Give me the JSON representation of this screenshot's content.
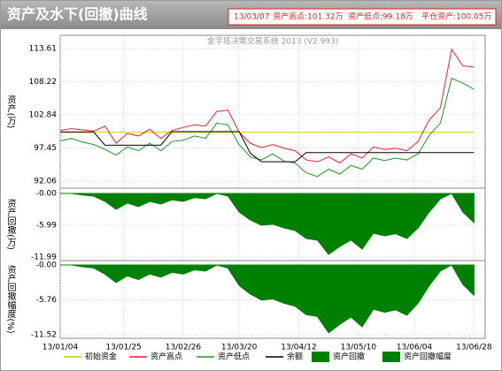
{
  "header": {
    "title": "资产及水下(回撤)曲线",
    "info": [
      "13/03/07",
      "资产高点:101.32万",
      "资产低点:99.18万",
      "平仓资产:100.05万"
    ]
  },
  "chart_data": [
    {
      "type": "line",
      "subtitle": "金字塔决策交易系统 2013 (V2.993)",
      "ylabel": "资产(万)",
      "x": [
        0,
        3,
        6,
        9,
        12,
        15,
        18,
        21,
        24,
        27,
        30,
        33,
        36,
        39,
        42,
        45,
        48,
        51,
        54,
        57,
        60,
        63,
        66,
        69,
        72,
        75,
        78,
        81,
        84,
        87,
        90,
        93,
        96,
        99,
        102,
        105,
        108,
        111
      ],
      "xlim": [
        0,
        114
      ],
      "ylim": [
        90.91,
        115.77
      ],
      "yticks": [
        113.61,
        108.22,
        102.84,
        97.45,
        92.06
      ],
      "grid": true,
      "series": [
        {
          "name": "初始资金",
          "color": "#d8c800",
          "values": [
            100,
            100,
            100,
            100,
            100,
            100,
            100,
            100,
            100,
            100,
            100,
            100,
            100,
            100,
            100,
            100,
            100,
            100,
            100,
            100,
            100,
            100,
            100,
            100,
            100,
            100,
            100,
            100,
            100,
            100,
            100,
            100,
            100,
            100,
            100,
            100,
            100,
            100
          ]
        },
        {
          "name": "资产高点",
          "color": "#e8202a",
          "values": [
            100.3,
            100.6,
            100.4,
            100.2,
            101.0,
            98.2,
            99.8,
            99.4,
            100.5,
            99.0,
            100.3,
            100.8,
            101.2,
            101.0,
            103.4,
            103.6,
            100.0,
            98.2,
            97.5,
            98.0,
            97.4,
            97.0,
            95.5,
            95.2,
            96.0,
            95.0,
            96.5,
            95.8,
            97.6,
            97.2,
            97.4,
            97.0,
            98.5,
            102.0,
            104.0,
            113.5,
            110.8,
            110.6
          ]
        },
        {
          "name": "资产低点",
          "color": "#1a9a1a",
          "values": [
            98.6,
            99.0,
            98.4,
            98.0,
            97.2,
            96.3,
            97.6,
            97.0,
            98.2,
            97.0,
            98.5,
            98.7,
            99.4,
            99.0,
            101.5,
            101.2,
            98.0,
            96.0,
            95.5,
            96.5,
            95.3,
            95.0,
            93.4,
            92.8,
            94.0,
            93.2,
            94.6,
            94.0,
            95.8,
            95.4,
            95.8,
            95.5,
            96.5,
            99.5,
            101.5,
            108.8,
            108.0,
            107.0
          ]
        },
        {
          "name": "余额",
          "color": "#000000",
          "values": [
            100.05,
            100.05,
            100.05,
            100.05,
            97.9,
            97.9,
            97.9,
            97.9,
            97.9,
            97.9,
            100.1,
            100.1,
            100.1,
            100.1,
            100.1,
            100.1,
            100.1,
            96.6,
            95.2,
            95.2,
            95.2,
            95.2,
            96.7,
            96.7,
            96.7,
            96.7,
            96.7,
            96.7,
            96.7,
            96.7,
            96.7,
            96.7,
            96.7,
            96.7,
            96.7,
            96.7,
            96.7,
            96.7
          ]
        }
      ]
    },
    {
      "type": "area",
      "ylabel": "资产回撤(万)",
      "ylim": [
        -12.66,
        1.0
      ],
      "yticks": [
        {
          "value": 0,
          "label": "-0.00"
        },
        -5.99,
        -11.99
      ],
      "grid": true,
      "series": [
        {
          "name": "资产回撤",
          "color": "#008000",
          "values": [
            0,
            0,
            -0.3,
            -0.5,
            -1.5,
            -3.0,
            -1.8,
            -2.5,
            -1.5,
            -2.0,
            -1.2,
            -1.5,
            -0.8,
            -1.0,
            0,
            -0.5,
            -3.5,
            -5.0,
            -6.0,
            -5.8,
            -6.5,
            -7.0,
            -8.5,
            -8.8,
            -11.5,
            -10.0,
            -8.8,
            -10.5,
            -7.5,
            -8.0,
            -7.6,
            -8.5,
            -6.5,
            -3.5,
            -1.0,
            0,
            -3.5,
            -5.5
          ]
        }
      ]
    },
    {
      "type": "area",
      "ylabel": "资产回撤幅度(%)",
      "ylim": [
        -12.1,
        0.73
      ],
      "yticks": [
        {
          "value": 0,
          "label": "-0.00"
        },
        -5.76,
        -11.52
      ],
      "grid": true,
      "xticks": [
        {
          "value": 0,
          "label": "13/01/04"
        },
        {
          "value": 17,
          "label": "13/01/25"
        },
        {
          "value": 33,
          "label": "13/02/26"
        },
        {
          "value": 48,
          "label": "13/03/20"
        },
        {
          "value": 64,
          "label": "13/04/12"
        },
        {
          "value": 80,
          "label": "13/05/10"
        },
        {
          "value": 95,
          "label": "13/06/04"
        },
        {
          "value": 111,
          "label": "13/06/28"
        }
      ],
      "series": [
        {
          "name": "资产回撤幅度",
          "color": "#008000",
          "values": [
            0,
            0,
            -0.3,
            -0.5,
            -1.5,
            -2.9,
            -1.8,
            -2.4,
            -1.5,
            -2.0,
            -1.2,
            -1.5,
            -0.8,
            -1.0,
            0,
            -0.5,
            -3.4,
            -4.8,
            -5.8,
            -5.6,
            -6.3,
            -6.8,
            -8.2,
            -8.5,
            -11.2,
            -9.8,
            -8.6,
            -10.2,
            -7.3,
            -7.8,
            -7.4,
            -8.3,
            -6.3,
            -3.4,
            -1.0,
            0,
            -3.2,
            -5.0
          ]
        }
      ]
    }
  ]
}
